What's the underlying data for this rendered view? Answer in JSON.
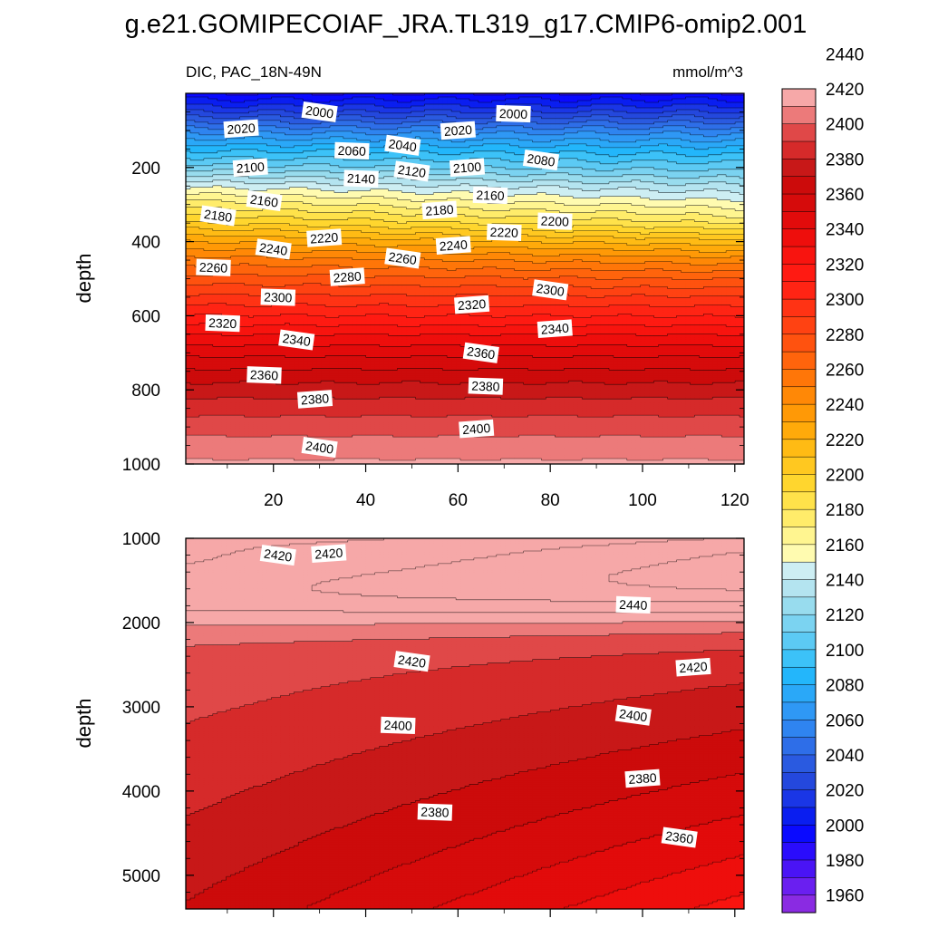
{
  "title": "g.e21.GOMIPECOIAF_JRA.TL319_g17.CMIP6-omip2.001",
  "chart_data": {
    "type": "contour",
    "variable_label": "DIC, PAC_18N-49N",
    "units": "mmol/m^3",
    "x_range": [
      1,
      122
    ],
    "x_ticks": [
      20,
      40,
      60,
      80,
      100,
      120
    ],
    "panels": [
      {
        "name": "upper",
        "ylabel": "depth",
        "ylim": [
          0,
          1000
        ],
        "y_ticks": [
          200,
          400,
          600,
          800,
          1000
        ],
        "profile_depths": [
          0,
          50,
          100,
          150,
          200,
          250,
          300,
          350,
          400,
          450,
          500,
          550,
          600,
          650,
          700,
          750,
          800,
          850,
          900,
          950,
          1000
        ],
        "profile_values": [
          1990,
          2020,
          2055,
          2085,
          2110,
          2140,
          2165,
          2190,
          2222,
          2250,
          2272,
          2292,
          2310,
          2330,
          2347,
          2362,
          2375,
          2386,
          2396,
          2404,
          2412
        ],
        "contour_labels": [
          {
            "text": "2000",
            "x": 30,
            "depth": 50
          },
          {
            "text": "2020",
            "x": 13,
            "depth": 95
          },
          {
            "text": "2060",
            "x": 37,
            "depth": 155
          },
          {
            "text": "2040",
            "x": 48,
            "depth": 140
          },
          {
            "text": "2020",
            "x": 60,
            "depth": 100
          },
          {
            "text": "2000",
            "x": 72,
            "depth": 55
          },
          {
            "text": "2080",
            "x": 78,
            "depth": 180
          },
          {
            "text": "2100",
            "x": 15,
            "depth": 200
          },
          {
            "text": "2140",
            "x": 39,
            "depth": 230
          },
          {
            "text": "2120",
            "x": 50,
            "depth": 210
          },
          {
            "text": "2100",
            "x": 62,
            "depth": 200
          },
          {
            "text": "2160",
            "x": 67,
            "depth": 275
          },
          {
            "text": "2160",
            "x": 18,
            "depth": 290
          },
          {
            "text": "2180",
            "x": 56,
            "depth": 315
          },
          {
            "text": "2200",
            "x": 81,
            "depth": 345
          },
          {
            "text": "2180",
            "x": 8,
            "depth": 330
          },
          {
            "text": "2220",
            "x": 31,
            "depth": 390
          },
          {
            "text": "2220",
            "x": 70,
            "depth": 375
          },
          {
            "text": "2240",
            "x": 20,
            "depth": 420
          },
          {
            "text": "2240",
            "x": 59,
            "depth": 410
          },
          {
            "text": "2260",
            "x": 7,
            "depth": 470
          },
          {
            "text": "2260",
            "x": 48,
            "depth": 445
          },
          {
            "text": "2280",
            "x": 36,
            "depth": 495
          },
          {
            "text": "2300",
            "x": 21,
            "depth": 550
          },
          {
            "text": "2300",
            "x": 80,
            "depth": 530
          },
          {
            "text": "2320",
            "x": 63,
            "depth": 570
          },
          {
            "text": "2320",
            "x": 9,
            "depth": 620
          },
          {
            "text": "2340",
            "x": 25,
            "depth": 665
          },
          {
            "text": "2340",
            "x": 81,
            "depth": 635
          },
          {
            "text": "2360",
            "x": 18,
            "depth": 760
          },
          {
            "text": "2360",
            "x": 65,
            "depth": 700
          },
          {
            "text": "2380",
            "x": 29,
            "depth": 825
          },
          {
            "text": "2380",
            "x": 66,
            "depth": 790
          },
          {
            "text": "2400",
            "x": 30,
            "depth": 955
          },
          {
            "text": "2400",
            "x": 64,
            "depth": 905
          }
        ]
      },
      {
        "name": "lower",
        "ylabel": "depth",
        "ylim": [
          1000,
          5400
        ],
        "y_ticks": [
          1000,
          2000,
          3000,
          4000,
          5000
        ],
        "contour_labels": [
          {
            "text": "2420",
            "x": 21,
            "depth": 1200
          },
          {
            "text": "2420",
            "x": 32,
            "depth": 1180
          },
          {
            "text": "2440",
            "x": 98,
            "depth": 1790
          },
          {
            "text": "2420",
            "x": 50,
            "depth": 2460
          },
          {
            "text": "2420",
            "x": 111,
            "depth": 2530
          },
          {
            "text": "2400",
            "x": 47,
            "depth": 3220
          },
          {
            "text": "2400",
            "x": 98,
            "depth": 3100
          },
          {
            "text": "2380",
            "x": 100,
            "depth": 3850
          },
          {
            "text": "2380",
            "x": 55,
            "depth": 4250
          },
          {
            "text": "2360",
            "x": 108,
            "depth": 4550
          }
        ]
      }
    ],
    "colorbar": {
      "levels": [
        1950,
        1960,
        1970,
        1980,
        1990,
        2000,
        2010,
        2020,
        2030,
        2040,
        2050,
        2060,
        2070,
        2080,
        2090,
        2100,
        2110,
        2120,
        2130,
        2140,
        2150,
        2160,
        2170,
        2180,
        2190,
        2200,
        2210,
        2220,
        2230,
        2240,
        2250,
        2260,
        2270,
        2280,
        2290,
        2300,
        2310,
        2320,
        2330,
        2340,
        2350,
        2360,
        2370,
        2380,
        2390,
        2400,
        2410,
        2420,
        2430,
        2440,
        2450,
        2460
      ],
      "labels": [
        1960,
        1980,
        2000,
        2020,
        2040,
        2060,
        2080,
        2100,
        2120,
        2140,
        2160,
        2180,
        2200,
        2220,
        2240,
        2260,
        2280,
        2300,
        2320,
        2340,
        2360,
        2380,
        2400,
        2420,
        2440
      ],
      "colors": [
        "#8a2be2",
        "#6a1ff0",
        "#4a14f5",
        "#2a0cfc",
        "#0a0aff",
        "#0a1ef0",
        "#1a36e6",
        "#2448dd",
        "#2a5ae0",
        "#2e6ee8",
        "#2f84f0",
        "#2f98f5",
        "#2aa8f8",
        "#23b6fb",
        "#3cc2f8",
        "#5ccaf4",
        "#7bd3f1",
        "#98dcee",
        "#b4e4f0",
        "#cdeef3",
        "#fffbb0",
        "#fff590",
        "#ffec6a",
        "#ffe24a",
        "#ffd62e",
        "#ffc820",
        "#ffbb14",
        "#ffaa0a",
        "#ff9906",
        "#ff8806",
        "#ff7608",
        "#ff640c",
        "#ff520f",
        "#ff4212",
        "#ff3314",
        "#ff2414",
        "#ff1a12",
        "#f8140f",
        "#ee0e0c",
        "#e20b0b",
        "#d60b0b",
        "#cc0b0b",
        "#c81818",
        "#d62a2a",
        "#e04848",
        "#ec7a7a",
        "#f6a8a8"
      ]
    }
  }
}
